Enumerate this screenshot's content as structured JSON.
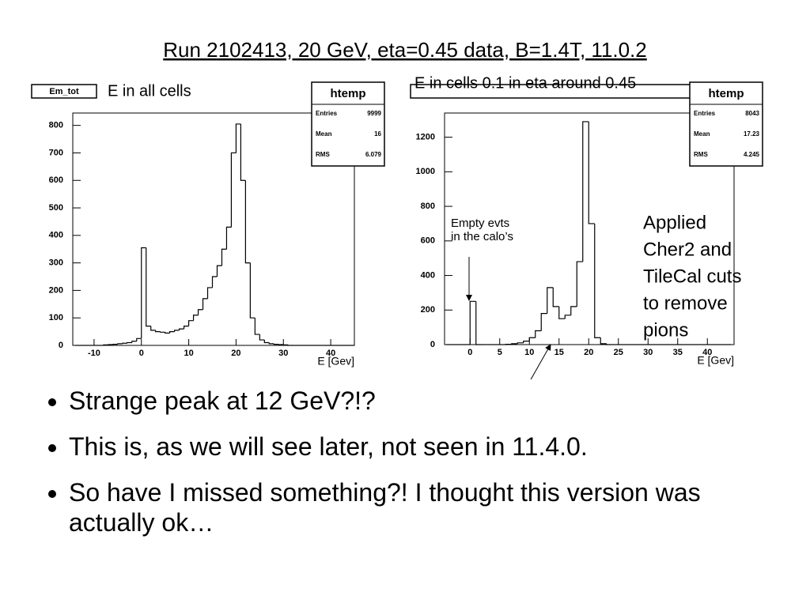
{
  "title": "Run 2102413, 20 GeV, eta=0.45  data, B=1.4T, 11.0.2",
  "bullets": [
    "Strange peak at 12 GeV?!?",
    "This is, as we will see later, not seen in 11.4.0.",
    "So have I missed something?! I thought this version was actually ok…"
  ],
  "chart_data": [
    {
      "type": "histogram",
      "name": "Em_tot",
      "title": "E in all cells",
      "xlabel": "E [Gev]",
      "color": "#000000",
      "bins": [
        -14,
        -13,
        -12,
        -11,
        -10,
        -9,
        -8,
        -7,
        -6,
        -5,
        -4,
        -3,
        -2,
        -1,
        0,
        1,
        2,
        3,
        4,
        5,
        6,
        7,
        8,
        9,
        10,
        11,
        12,
        13,
        14,
        15,
        16,
        17,
        18,
        19,
        20,
        21,
        22,
        23,
        24,
        25,
        26,
        27,
        28,
        29,
        30,
        31,
        32,
        33,
        34,
        35,
        36,
        37,
        38,
        39,
        40,
        41,
        42,
        43,
        44,
        45
      ],
      "values": [
        0,
        0,
        0,
        0,
        0,
        0,
        2,
        3,
        4,
        6,
        8,
        10,
        15,
        25,
        355,
        70,
        55,
        50,
        48,
        45,
        50,
        55,
        60,
        70,
        90,
        110,
        130,
        170,
        210,
        250,
        290,
        350,
        430,
        700,
        805,
        600,
        300,
        100,
        40,
        20,
        10,
        6,
        4,
        3,
        2,
        0,
        0,
        0,
        0,
        0,
        0,
        0,
        0,
        0,
        0,
        0,
        0,
        0,
        0
      ],
      "xlim": [
        -14.5,
        45
      ],
      "xticks": [
        -10,
        0,
        10,
        20,
        30,
        40
      ],
      "ylim": [
        0,
        845
      ],
      "yticks": [
        0,
        100,
        200,
        300,
        400,
        500,
        600,
        700,
        800
      ],
      "stats": {
        "title": "htemp",
        "rows": [
          {
            "label": "Entries",
            "value": 9999
          },
          {
            "label": "Mean",
            "value": 16
          },
          {
            "label": "RMS",
            "value": 6.079
          }
        ]
      }
    },
    {
      "type": "histogram",
      "title": "E in cells 0.1 in eta around 0.45",
      "xlabel": "E [Gev]",
      "color": "#000000",
      "bins": [
        -4,
        -3,
        -2,
        -1,
        0,
        1,
        2,
        3,
        4,
        5,
        6,
        7,
        8,
        9,
        10,
        11,
        12,
        13,
        14,
        15,
        16,
        17,
        18,
        19,
        20,
        21,
        22,
        23,
        24,
        25,
        26,
        27,
        28,
        29,
        30,
        31,
        32,
        33,
        34,
        35,
        36,
        37,
        38,
        39,
        40,
        41,
        42,
        43,
        44
      ],
      "values": [
        0,
        0,
        0,
        0,
        250,
        0,
        0,
        0,
        0,
        0,
        2,
        5,
        10,
        20,
        40,
        80,
        180,
        330,
        220,
        150,
        170,
        220,
        480,
        1290,
        700,
        40,
        5,
        0,
        0,
        0,
        0,
        0,
        0,
        0,
        0,
        0,
        0,
        0,
        0,
        0,
        0,
        0,
        0,
        0,
        0,
        0,
        0,
        0
      ],
      "xlim": [
        -4.3,
        44.5
      ],
      "xticks": [
        0,
        5,
        10,
        15,
        20,
        25,
        30,
        35,
        40
      ],
      "ylim": [
        0,
        1340
      ],
      "yticks": [
        0,
        200,
        400,
        600,
        800,
        1000,
        1200
      ],
      "stats": {
        "title": "htemp",
        "rows": [
          {
            "label": "Entries",
            "value": 8043
          },
          {
            "label": "Mean",
            "value": 17.23
          },
          {
            "label": "RMS",
            "value": 4.245
          }
        ]
      },
      "annotations": [
        [
          "Empty evts",
          "in the calo’s"
        ],
        [
          "Applied",
          "Cher2 and",
          "TileCal cuts",
          "to remove",
          "pions"
        ]
      ]
    }
  ]
}
